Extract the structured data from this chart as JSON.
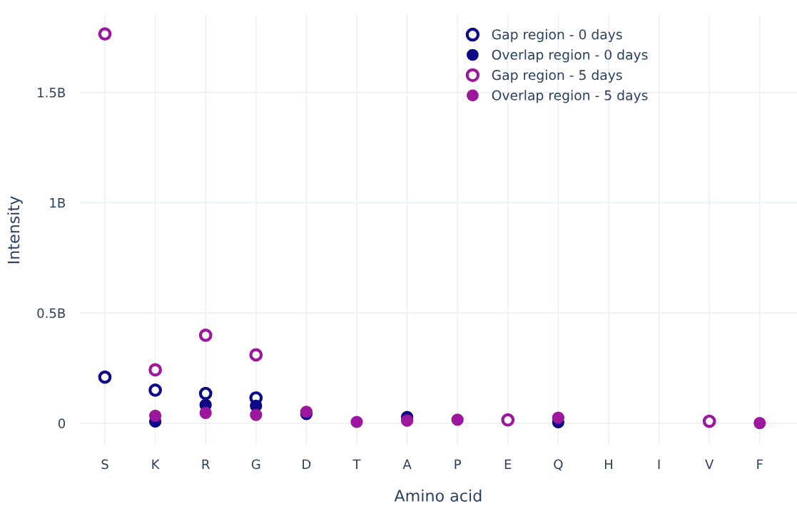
{
  "chart_data": {
    "type": "scatter",
    "xlabel": "Amino acid",
    "ylabel": "Intensity",
    "categories": [
      "S",
      "K",
      "R",
      "G",
      "D",
      "T",
      "A",
      "P",
      "E",
      "Q",
      "H",
      "I",
      "V",
      "F"
    ],
    "series": [
      {
        "name": "Gap region - 0 days",
        "color": "#0d0887",
        "marker": "open circle",
        "values": [
          0.209,
          0.15,
          0.135,
          0.115,
          null,
          null,
          null,
          null,
          null,
          null,
          null,
          null,
          null,
          null
        ]
      },
      {
        "name": "Overlap region - 0 days",
        "color": "#0d0887",
        "marker": "circle",
        "values": [
          null,
          0.008,
          0.083,
          0.079,
          0.042,
          null,
          0.028,
          null,
          null,
          0.005,
          null,
          null,
          null,
          null
        ]
      },
      {
        "name": "Gap region - 5 days",
        "color": "#9c179e",
        "marker": "open circle",
        "values": [
          1.765,
          0.242,
          0.399,
          0.31,
          null,
          null,
          null,
          null,
          0.015,
          null,
          null,
          null,
          0.009,
          null
        ]
      },
      {
        "name": "Overlap region - 5 days",
        "color": "#9c179e",
        "marker": "circle",
        "values": [
          null,
          0.034,
          0.047,
          0.038,
          0.052,
          0.006,
          0.012,
          0.016,
          null,
          0.025,
          null,
          null,
          null,
          0.001
        ]
      }
    ],
    "ylim": [
      -0.1,
      1.85
    ],
    "yticks": [
      {
        "value": 0,
        "label": "0"
      },
      {
        "value": 0.5,
        "label": "0.5B"
      },
      {
        "value": 1,
        "label": "1B"
      },
      {
        "value": 1.5,
        "label": "1.5B"
      }
    ],
    "grid": true,
    "legend": "top right"
  }
}
